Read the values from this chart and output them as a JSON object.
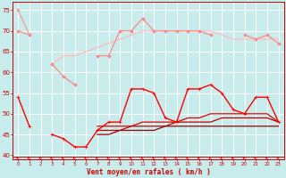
{
  "bg_color": "#c8ecec",
  "grid_color": "#aadddd",
  "xlabel": "Vent moyen/en rafales ( km/h )",
  "x": [
    0,
    1,
    2,
    3,
    4,
    5,
    6,
    7,
    8,
    9,
    10,
    11,
    12,
    13,
    14,
    15,
    16,
    17,
    18,
    19,
    20,
    21,
    22,
    23
  ],
  "line_p1": [
    75,
    69,
    null,
    null,
    null,
    null,
    null,
    null,
    null,
    null,
    null,
    null,
    null,
    null,
    null,
    null,
    null,
    null,
    null,
    null,
    null,
    null,
    null,
    null
  ],
  "line_p2": [
    70,
    69,
    null,
    62,
    59,
    57,
    null,
    64,
    64,
    70,
    70,
    73,
    70,
    70,
    70,
    70,
    70,
    69,
    null,
    null,
    69,
    68,
    69,
    67
  ],
  "line_p3": [
    null,
    null,
    null,
    62,
    64,
    64,
    65,
    66,
    67,
    68,
    69,
    70,
    70,
    70,
    70,
    70,
    70,
    70,
    69,
    68,
    68,
    68,
    68,
    68
  ],
  "line_p4": [
    null,
    null,
    null,
    null,
    null,
    null,
    null,
    null,
    null,
    null,
    null,
    null,
    null,
    null,
    null,
    null,
    null,
    null,
    null,
    null,
    null,
    null,
    null,
    null
  ],
  "line_r1": [
    54,
    47,
    null,
    45,
    44,
    42,
    42,
    46,
    48,
    48,
    56,
    56,
    55,
    49,
    48,
    56,
    56,
    57,
    55,
    51,
    50,
    54,
    54,
    48
  ],
  "line_r2": [
    null,
    46,
    null,
    45,
    null,
    null,
    null,
    47,
    47,
    47,
    47,
    48,
    48,
    48,
    48,
    49,
    49,
    50,
    50,
    50,
    50,
    50,
    50,
    48
  ],
  "line_r3": [
    null,
    46,
    null,
    null,
    null,
    null,
    null,
    46,
    46,
    46,
    47,
    47,
    47,
    47,
    48,
    48,
    48,
    48,
    49,
    49,
    49,
    49,
    49,
    48
  ],
  "line_r4": [
    null,
    46,
    null,
    null,
    null,
    null,
    null,
    45,
    45,
    46,
    46,
    46,
    46,
    47,
    47,
    47,
    47,
    47,
    47,
    47,
    47,
    47,
    47,
    47
  ],
  "color_p1": "#ff9999",
  "color_p2": "#ff8888",
  "color_p3": "#ffbbbb",
  "color_r1": "#ff0000",
  "color_r2": "#dd0000",
  "color_r3": "#bb0000",
  "color_r4": "#990000",
  "ylim": [
    39,
    77
  ],
  "yticks": [
    40,
    45,
    50,
    55,
    60,
    65,
    70,
    75
  ]
}
